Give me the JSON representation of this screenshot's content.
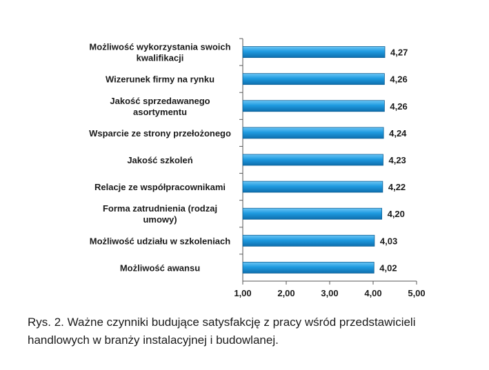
{
  "chart_data": {
    "type": "bar",
    "orientation": "horizontal",
    "categories": [
      "Możliwość wykorzystania swoich kwalifikacji",
      "Wizerunek firmy na rynku",
      "Jakość sprzedawanego asortymentu",
      "Wsparcie ze strony przełożonego",
      "Jakość szkoleń",
      "Relacje ze współpracownikami",
      "Forma zatrudnienia (rodzaj umowy)",
      "Możliwość udziału w szkoleniach",
      "Możliwość awansu"
    ],
    "category_lines": [
      [
        "Możliwość wykorzystania swoich",
        "kwalifikacji"
      ],
      [
        "Wizerunek firmy na rynku"
      ],
      [
        "Jakość sprzedawanego",
        "asortymentu"
      ],
      [
        "Wsparcie ze strony przełożonego"
      ],
      [
        "Jakość szkoleń"
      ],
      [
        "Relacje ze współpracownikami"
      ],
      [
        "Forma zatrudnienia (rodzaj",
        "umowy)"
      ],
      [
        "Możliwość udziału w szkoleniach"
      ],
      [
        "Możliwość awansu"
      ]
    ],
    "values": [
      4.27,
      4.26,
      4.26,
      4.24,
      4.23,
      4.22,
      4.2,
      4.03,
      4.02
    ],
    "value_labels": [
      "4,27",
      "4,26",
      "4,26",
      "4,24",
      "4,23",
      "4,22",
      "4,20",
      "4,03",
      "4,02"
    ],
    "xlim": [
      1,
      5
    ],
    "x_ticks": [
      "1,00",
      "2,00",
      "3,00",
      "4,00",
      "5,00"
    ],
    "grid": false,
    "bar_color": "#1f9be0",
    "bar_edge_color": "#0d5f94"
  },
  "caption": "Rys. 2. Ważne czynniki budujące satysfakcję z pracy wśród przedstawicieli handlowych w branży instalacyjnej i budowlanej."
}
